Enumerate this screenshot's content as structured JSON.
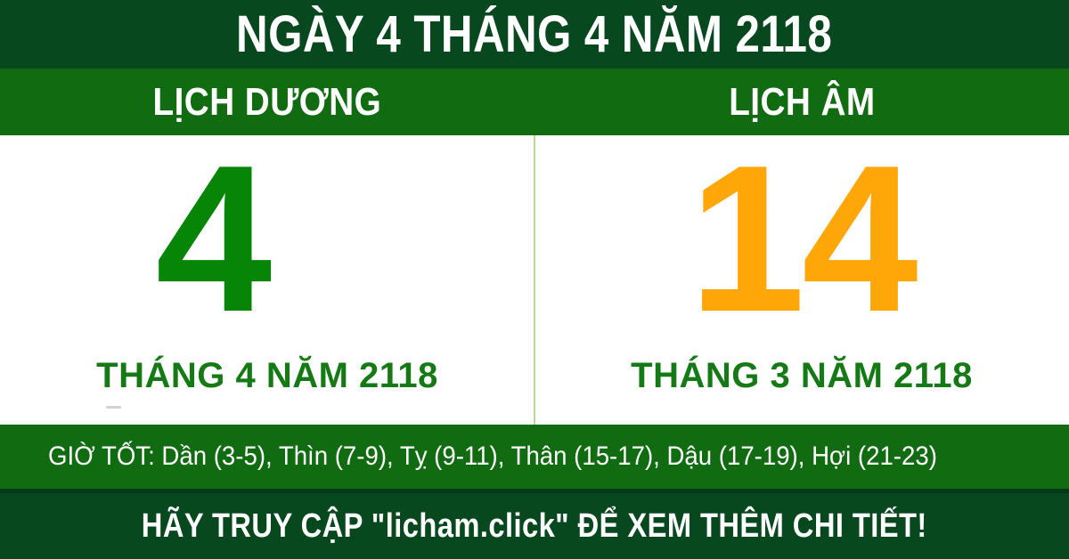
{
  "header": {
    "title": "NGÀY 4 THÁNG 4 NĂM 2118"
  },
  "calendars": {
    "solar": {
      "label": "LỊCH DƯƠNG",
      "day": "4",
      "month_year": "THÁNG 4 NĂM 2118"
    },
    "lunar": {
      "label": "LỊCH ÂM",
      "day": "14",
      "month_year": "THÁNG 3 NĂM 2118"
    }
  },
  "good_hours": {
    "text": "GIỜ TỐT: Dần (3-5), Thìn (7-9), Tỵ (9-11), Thân (15-17), Dậu (17-19), Hợi (21-23)"
  },
  "footer": {
    "text": "HÃY TRUY CẬP \"licham.click\" ĐỂ XEM THÊM CHI TIẾT!"
  },
  "colors": {
    "dark_green": "#07481f",
    "bright_green": "#116c11",
    "solar_day_green": "#068506",
    "lunar_day_orange": "#ffa608",
    "month_label_green": "#157a15",
    "divider_light_green": "#b7db90",
    "text_white": "#ffffff"
  }
}
